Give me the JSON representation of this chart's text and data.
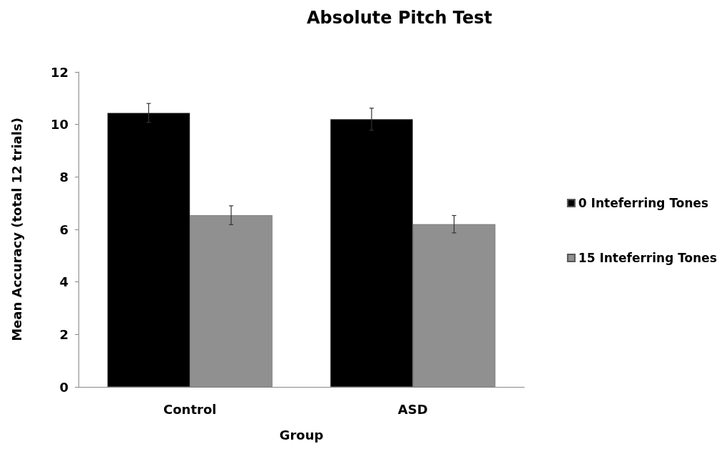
{
  "chart_data": {
    "type": "bar",
    "title": "Absolute Pitch Test",
    "xlabel": "Group",
    "ylabel": "Mean Accuracy (total 12 trials)",
    "categories": [
      "Control",
      "ASD"
    ],
    "series": [
      {
        "name": "0 Inteferring Tones",
        "color": "#000000",
        "values": [
          10.44,
          10.2
        ],
        "errors": [
          0.36,
          0.42
        ]
      },
      {
        "name": "15 Inteferring Tones",
        "color": "#909090",
        "values": [
          6.54,
          6.2
        ],
        "errors": [
          0.36,
          0.33
        ]
      }
    ],
    "ylim": [
      0,
      12
    ],
    "yticks": [
      0,
      2,
      4,
      6,
      8,
      10,
      12
    ],
    "grid": false,
    "legend": "right"
  }
}
